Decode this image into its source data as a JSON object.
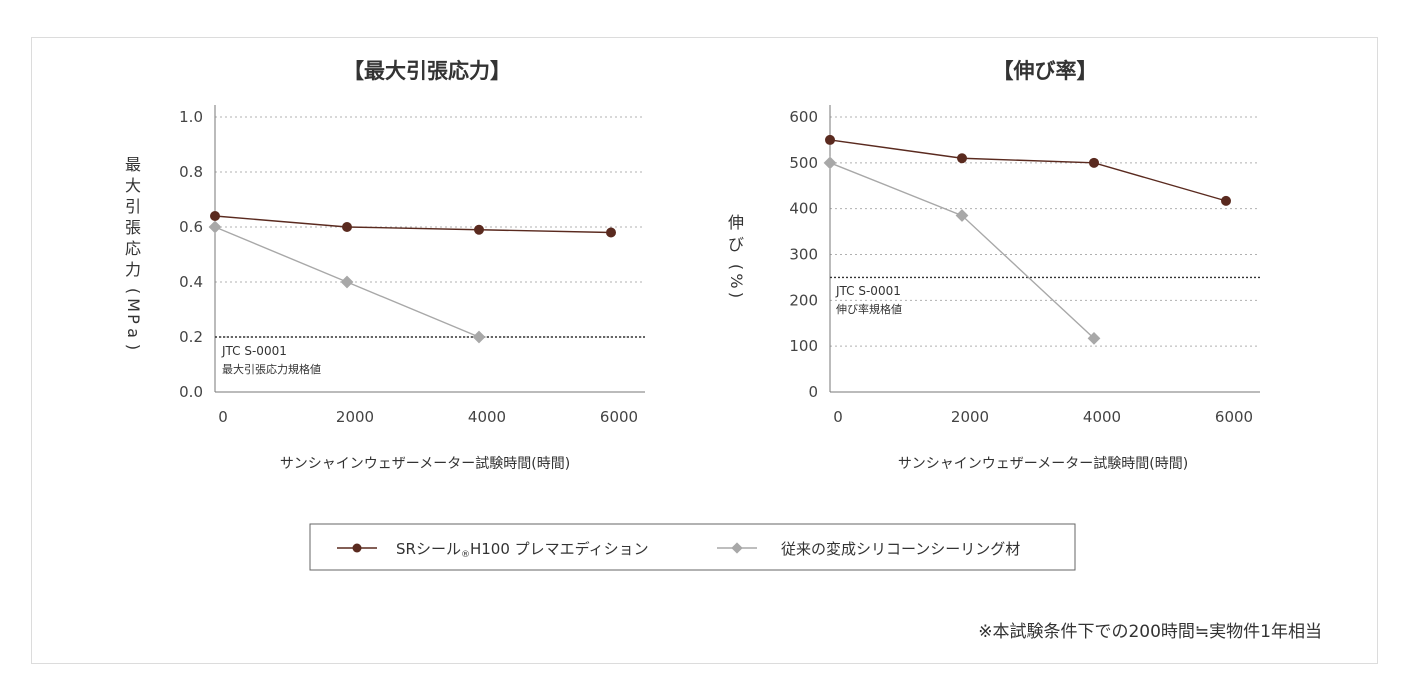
{
  "colors": {
    "brown": "#5a2a1f",
    "gray": "#a8a8a8",
    "grid": "#b0b0b0",
    "ref": "#333333"
  },
  "chart_data": [
    {
      "type": "line",
      "title": "【最大引張応力】",
      "ylabel": "最大引張応力(MPa)",
      "xlabel": "サンシャインウェザーメーター試験時間(時間)",
      "x": [
        0,
        2000,
        4000,
        6000
      ],
      "xticks": [
        "0",
        "2000",
        "4000",
        "6000"
      ],
      "yticks": [
        "0.0",
        "0.2",
        "0.4",
        "0.6",
        "0.8",
        "1.0"
      ],
      "ylim": [
        0,
        1.0
      ],
      "grid": true,
      "series": [
        {
          "name": "SRシール®H100 プレマエディション",
          "values": [
            0.64,
            0.6,
            0.59,
            0.58
          ]
        },
        {
          "name": "従来の変成シリコーンシーリング材",
          "values": [
            0.6,
            0.4,
            0.2,
            null
          ]
        }
      ],
      "reference": {
        "value": 0.2,
        "label1": "JTC S-0001",
        "label2": "最大引張応力規格値"
      }
    },
    {
      "type": "line",
      "title": "【伸び率】",
      "ylabel": "伸び(%)",
      "xlabel": "サンシャインウェザーメーター試験時間(時間)",
      "x": [
        0,
        2000,
        4000,
        6000
      ],
      "xticks": [
        "0",
        "2000",
        "4000",
        "6000"
      ],
      "yticks": [
        "0",
        "100",
        "200",
        "300",
        "400",
        "500",
        "600"
      ],
      "ylim": [
        0,
        600
      ],
      "grid": true,
      "series": [
        {
          "name": "SRシール®H100 プレマエディション",
          "values": [
            550,
            510,
            500,
            417
          ]
        },
        {
          "name": "従来の変成シリコーンシーリング材",
          "values": [
            500,
            385,
            117,
            null
          ]
        }
      ],
      "reference": {
        "value": 250,
        "label1": "JTC S-0001",
        "label2": "伸び率規格値"
      }
    }
  ],
  "legend": {
    "series1": "SRシール",
    "series1_mark": "®",
    "series1_rest": "H100 プレマエディション",
    "series2": "従来の変成シリコーンシーリング材"
  },
  "footnote": "※本試験条件下での200時間≒実物件1年相当"
}
